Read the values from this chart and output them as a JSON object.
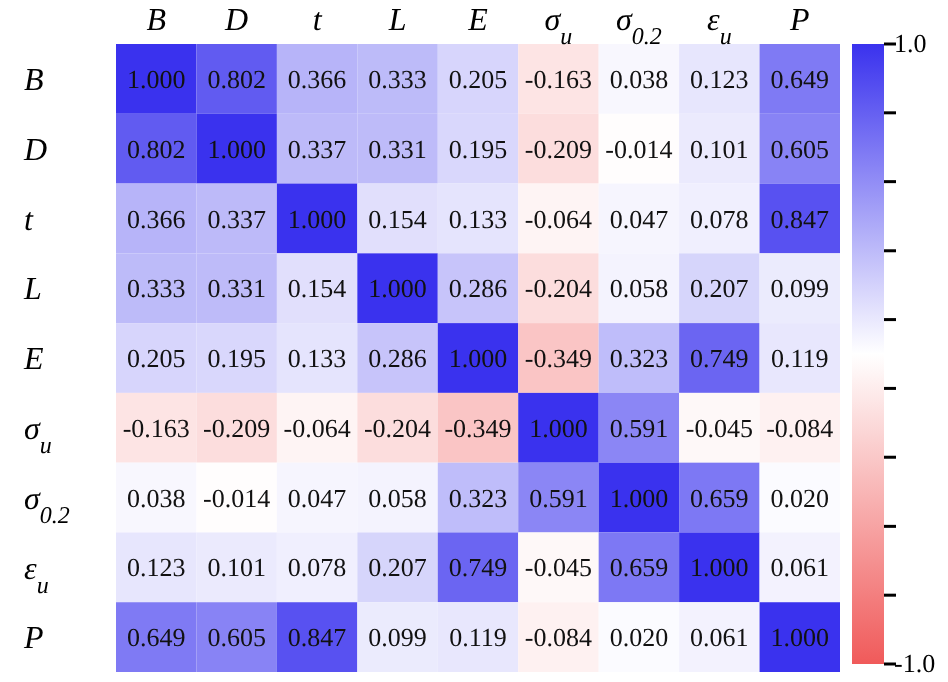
{
  "chart_data": {
    "type": "heatmap",
    "categories": [
      "B",
      "D",
      "t",
      "L",
      "E",
      "σ$_{u}$",
      "σ$_{0.2}$",
      "ε$_{u}$",
      "P"
    ],
    "y_categories": [
      "B",
      "D",
      "t",
      "L",
      "E",
      "σ$_{u}$",
      "σ$_{0.2}$",
      "ε$_{u}$",
      "P"
    ],
    "cells": [
      [
        1.0,
        0.802,
        0.366,
        0.333,
        0.205,
        -0.163,
        0.038,
        0.123,
        0.649
      ],
      [
        0.802,
        1.0,
        0.337,
        0.331,
        0.195,
        -0.209,
        -0.014,
        0.101,
        0.605
      ],
      [
        0.366,
        0.337,
        1.0,
        0.154,
        0.133,
        -0.064,
        0.047,
        0.078,
        0.847
      ],
      [
        0.333,
        0.331,
        0.154,
        1.0,
        0.286,
        -0.204,
        0.058,
        0.207,
        0.099
      ],
      [
        0.205,
        0.195,
        0.133,
        0.286,
        1.0,
        -0.349,
        0.323,
        0.749,
        0.119
      ],
      [
        -0.163,
        -0.209,
        -0.064,
        -0.204,
        -0.349,
        1.0,
        0.591,
        -0.045,
        -0.084
      ],
      [
        0.038,
        -0.014,
        0.047,
        0.058,
        0.323,
        0.591,
        1.0,
        0.659,
        0.02
      ],
      [
        0.123,
        0.101,
        0.078,
        0.207,
        0.749,
        -0.045,
        0.659,
        1.0,
        0.061
      ],
      [
        0.649,
        0.605,
        0.847,
        0.099,
        0.119,
        -0.084,
        0.02,
        0.061,
        1.0
      ]
    ],
    "cell_labels": [
      [
        "1.000",
        "0.802",
        "0.366",
        "0.333",
        "0.205",
        "-0.163",
        "0.038",
        "0.123",
        "0.649"
      ],
      [
        "0.802",
        "1.000",
        "0.337",
        "0.331",
        "0.195",
        "-0.209",
        "-0.014",
        "0.101",
        "0.605"
      ],
      [
        "0.366",
        "0.337",
        "1.000",
        "0.154",
        "0.133",
        "-0.064",
        "0.047",
        "0.078",
        "0.847"
      ],
      [
        "0.333",
        "0.331",
        "0.154",
        "1.000",
        "0.286",
        "-0.204",
        "0.058",
        "0.207",
        "0.099"
      ],
      [
        "0.205",
        "0.195",
        "0.133",
        "0.286",
        "1.000",
        "-0.349",
        "0.323",
        "0.749",
        "0.119"
      ],
      [
        "-0.163",
        "-0.209",
        "-0.064",
        "-0.204",
        "-0.349",
        "1.000",
        "0.591",
        "-0.045",
        "-0.084"
      ],
      [
        "0.038",
        "-0.014",
        "0.047",
        "0.058",
        "0.323",
        "0.591",
        "1.000",
        "0.659",
        "0.020"
      ],
      [
        "0.123",
        "0.101",
        "0.078",
        "0.207",
        "0.749",
        "-0.045",
        "0.659",
        "1.000",
        "0.061"
      ],
      [
        "0.649",
        "0.605",
        "0.847",
        "0.099",
        "0.119",
        "-0.084",
        "0.020",
        "0.061",
        "1.000"
      ]
    ],
    "clim": [
      -1.0,
      1.0
    ],
    "cticks": [
      {
        "value": 1.0,
        "label": "1.0"
      },
      {
        "value": 0.778,
        "label": null
      },
      {
        "value": 0.556,
        "label": null
      },
      {
        "value": 0.333,
        "label": null
      },
      {
        "value": 0.111,
        "label": null
      },
      {
        "value": -0.111,
        "label": null
      },
      {
        "value": -0.333,
        "label": null
      },
      {
        "value": -0.556,
        "label": null
      },
      {
        "value": -0.778,
        "label": null
      },
      {
        "value": -1.0,
        "label": "-1.0"
      }
    ]
  }
}
